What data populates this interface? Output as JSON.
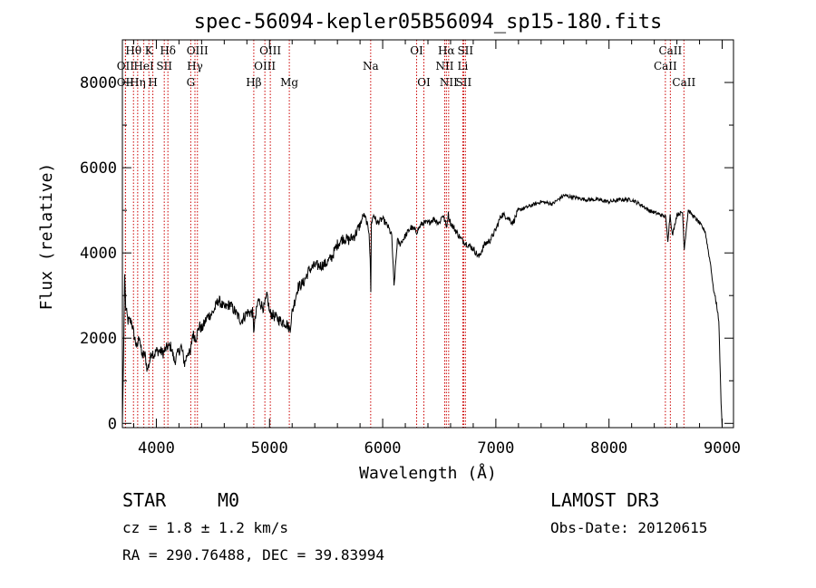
{
  "chart_data": {
    "type": "line",
    "title": "spec-56094-kepler05B56094_sp15-180.fits",
    "xlabel": "Wavelength (Å)",
    "ylabel": "Flux (relative)",
    "xlim": [
      3700,
      9100
    ],
    "ylim": [
      -100,
      9000
    ],
    "x_ticks": [
      4000,
      5000,
      6000,
      7000,
      8000,
      9000
    ],
    "y_ticks": [
      0,
      2000,
      4000,
      6000,
      8000
    ],
    "grid": false,
    "series": [
      {
        "name": "spectrum",
        "x": [
          3700,
          3710,
          3720,
          3730,
          3750,
          3780,
          3800,
          3830,
          3850,
          3870,
          3900,
          3920,
          3940,
          3960,
          3980,
          4000,
          4030,
          4060,
          4100,
          4130,
          4160,
          4200,
          4220,
          4250,
          4280,
          4300,
          4320,
          4350,
          4380,
          4400,
          4450,
          4500,
          4550,
          4600,
          4650,
          4700,
          4750,
          4800,
          4850,
          4860,
          4900,
          4950,
          4980,
          5000,
          5050,
          5100,
          5150,
          5180,
          5200,
          5250,
          5300,
          5350,
          5400,
          5450,
          5500,
          5550,
          5600,
          5650,
          5700,
          5750,
          5800,
          5830,
          5850,
          5880,
          5890,
          5895,
          5900,
          5910,
          5920,
          5950,
          6000,
          6050,
          6080,
          6100,
          6130,
          6150,
          6200,
          6250,
          6300,
          6350,
          6400,
          6450,
          6500,
          6530,
          6550,
          6563,
          6580,
          6600,
          6650,
          6700,
          6750,
          6800,
          6850,
          6900,
          6950,
          7000,
          7050,
          7100,
          7150,
          7200,
          7300,
          7400,
          7500,
          7600,
          7700,
          7800,
          7900,
          8000,
          8100,
          8200,
          8300,
          8350,
          8400,
          8450,
          8500,
          8520,
          8540,
          8560,
          8600,
          8650,
          8665,
          8700,
          8750,
          8800,
          8850,
          8880,
          8900,
          8920,
          8950,
          8970,
          8980,
          8990,
          9000
        ],
        "y": [
          0,
          1500,
          3500,
          2700,
          2400,
          2400,
          2100,
          1750,
          2100,
          1600,
          1600,
          1250,
          1450,
          1700,
          1600,
          1700,
          1700,
          1650,
          1800,
          1800,
          1450,
          1700,
          1800,
          1400,
          1700,
          1600,
          2100,
          2000,
          2300,
          2200,
          2500,
          2600,
          2900,
          2700,
          2800,
          2600,
          2400,
          2600,
          2600,
          2200,
          2900,
          2700,
          3000,
          2600,
          2500,
          2400,
          2350,
          2200,
          2600,
          3200,
          3300,
          3600,
          3700,
          3700,
          3750,
          3900,
          4200,
          4350,
          4300,
          4400,
          4650,
          4900,
          4800,
          4500,
          3800,
          3100,
          4700,
          4800,
          4900,
          4700,
          4800,
          4600,
          4400,
          3200,
          4300,
          4200,
          4400,
          4600,
          4500,
          4700,
          4700,
          4800,
          4700,
          4900,
          4750,
          4600,
          4900,
          4700,
          4500,
          4300,
          4200,
          4100,
          3900,
          4200,
          4300,
          4550,
          4900,
          4850,
          4700,
          5000,
          5100,
          5200,
          5150,
          5350,
          5300,
          5250,
          5250,
          5200,
          5250,
          5250,
          5100,
          5000,
          4950,
          4900,
          4850,
          4300,
          4900,
          4400,
          4900,
          4950,
          4100,
          5000,
          4850,
          4700,
          4500,
          4000,
          3700,
          3200,
          2800,
          2400,
          1500,
          500,
          -100
        ]
      }
    ],
    "line_labels": [
      {
        "name": "OII",
        "wl": 3727,
        "row": 2
      },
      {
        "name": "OII",
        "wl": 3727,
        "row": 3
      },
      {
        "name": "Hθ",
        "wl": 3798,
        "row": 1
      },
      {
        "name": "Hη",
        "wl": 3835,
        "row": 3
      },
      {
        "name": "HeI",
        "wl": 3889,
        "row": 2
      },
      {
        "name": "K",
        "wl": 3934,
        "row": 1
      },
      {
        "name": "H",
        "wl": 3969,
        "row": 3
      },
      {
        "name": "SII",
        "wl": 4070,
        "row": 2
      },
      {
        "name": "Hδ",
        "wl": 4102,
        "row": 1
      },
      {
        "name": "G",
        "wl": 4304,
        "row": 3
      },
      {
        "name": "Hγ",
        "wl": 4341,
        "row": 2
      },
      {
        "name": "OIII",
        "wl": 4363,
        "row": 1
      },
      {
        "name": "Hβ",
        "wl": 4861,
        "row": 3
      },
      {
        "name": "OIII",
        "wl": 4959,
        "row": 2
      },
      {
        "name": "OIII",
        "wl": 5007,
        "row": 1
      },
      {
        "name": "Mg",
        "wl": 5175,
        "row": 3
      },
      {
        "name": "Na",
        "wl": 5894,
        "row": 2
      },
      {
        "name": "OI",
        "wl": 6300,
        "row": 1
      },
      {
        "name": "OI",
        "wl": 6364,
        "row": 3
      },
      {
        "name": "NII",
        "wl": 6548,
        "row": 2
      },
      {
        "name": "Hα",
        "wl": 6563,
        "row": 1
      },
      {
        "name": "NII",
        "wl": 6583,
        "row": 3
      },
      {
        "name": "SII",
        "wl": 6716,
        "row": 3
      },
      {
        "name": "Li",
        "wl": 6708,
        "row": 2
      },
      {
        "name": "SII",
        "wl": 6731,
        "row": 1
      },
      {
        "name": "CaII",
        "wl": 8498,
        "row": 2
      },
      {
        "name": "CaII",
        "wl": 8542,
        "row": 1
      },
      {
        "name": "CaII",
        "wl": 8662,
        "row": 3
      }
    ],
    "line_color": "#cc0000"
  },
  "info": {
    "object_class": "STAR",
    "subclass": "M0",
    "survey": "LAMOST DR3",
    "redshift": "cz = 1.8 ± 1.2 km/s",
    "obs_date": "Obs-Date: 20120615",
    "coords": "RA = 290.76488, DEC =  39.83994"
  }
}
